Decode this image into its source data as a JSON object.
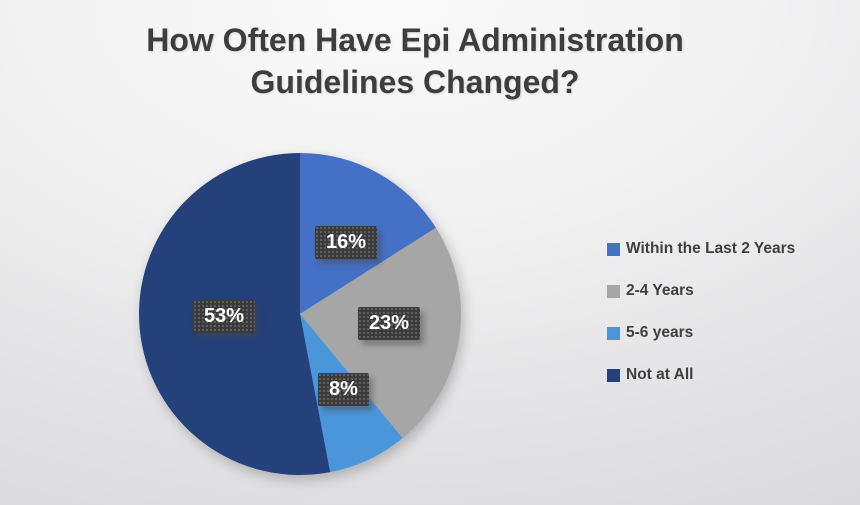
{
  "chart_data": {
    "type": "pie",
    "title": "How Often Have Epi Administration\nGuidelines Changed?",
    "legend_position": "right",
    "start_angle_deg": 0,
    "direction": "clockwise",
    "label_style": "percent badges on dark dotted boxes",
    "slices": [
      {
        "name": "Within the Last 2 Years",
        "value": 16,
        "label": "16%",
        "color": "#4470c6"
      },
      {
        "name": "2-4 Years",
        "value": 23,
        "label": "23%",
        "color": "#a6a6a6"
      },
      {
        "name": "5-6 years",
        "value": 8,
        "label": "8%",
        "color": "#4b96da"
      },
      {
        "name": "Not at All",
        "value": 53,
        "label": "53%",
        "color": "#24417c"
      }
    ]
  }
}
